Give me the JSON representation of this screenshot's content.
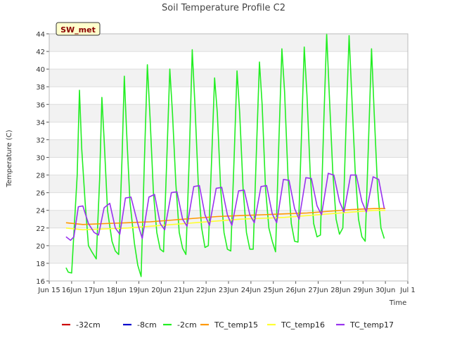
{
  "chart_data": {
    "type": "line",
    "title": "Soil Temperature Profile C2",
    "tag": "SW_met",
    "xlabel": "Time",
    "ylabel": "Temperature (C)",
    "ylim": [
      16,
      44
    ],
    "yticks": [
      16,
      18,
      20,
      22,
      24,
      26,
      28,
      30,
      32,
      34,
      36,
      38,
      40,
      42,
      44
    ],
    "xlim": [
      15,
      31
    ],
    "xticks": [
      {
        "day": 15,
        "label": "Jun 15"
      },
      {
        "day": 16,
        "label": "16Jun"
      },
      {
        "day": 17,
        "label": "17Jun"
      },
      {
        "day": 18,
        "label": "18Jun"
      },
      {
        "day": 19,
        "label": "19Jun"
      },
      {
        "day": 20,
        "label": "20Jun"
      },
      {
        "day": 21,
        "label": "21Jun"
      },
      {
        "day": 22,
        "label": "22Jun"
      },
      {
        "day": 23,
        "label": "23Jun"
      },
      {
        "day": 24,
        "label": "24Jun"
      },
      {
        "day": 25,
        "label": "25Jun"
      },
      {
        "day": 26,
        "label": "26Jun"
      },
      {
        "day": 27,
        "label": "27Jun"
      },
      {
        "day": 28,
        "label": "28Jun"
      },
      {
        "day": 29,
        "label": "29Jun"
      },
      {
        "day": 30,
        "label": "30Jun"
      },
      {
        "day": 31,
        "label": "Jul 1"
      }
    ],
    "grid": "horizontal bands",
    "legend_position": "bottom",
    "series": [
      {
        "name": "-32cm",
        "color": "#cc0000",
        "x": [],
        "y": []
      },
      {
        "name": "-8cm",
        "color": "#0000cc",
        "x": [],
        "y": []
      },
      {
        "name": "-2cm",
        "color": "#22ee22",
        "x": [
          15.75,
          15.85,
          16.0,
          16.25,
          16.35,
          16.45,
          16.6,
          16.75,
          16.9,
          17.1,
          17.25,
          17.35,
          17.45,
          17.6,
          17.8,
          17.95,
          18.1,
          18.25,
          18.35,
          18.45,
          18.6,
          18.8,
          18.95,
          19.1,
          19.25,
          19.38,
          19.5,
          19.65,
          19.8,
          19.95,
          20.1,
          20.25,
          20.38,
          20.5,
          20.65,
          20.8,
          20.95,
          21.1,
          21.25,
          21.38,
          21.5,
          21.65,
          21.8,
          21.95,
          22.1,
          22.25,
          22.38,
          22.5,
          22.65,
          22.8,
          22.95,
          23.1,
          23.25,
          23.38,
          23.5,
          23.65,
          23.8,
          23.95,
          24.1,
          24.25,
          24.38,
          24.5,
          24.65,
          24.8,
          24.95,
          25.1,
          25.25,
          25.38,
          25.5,
          25.65,
          25.8,
          25.95,
          26.1,
          26.25,
          26.38,
          26.5,
          26.65,
          26.8,
          26.95,
          27.1,
          27.25,
          27.38,
          27.5,
          27.65,
          27.8,
          27.95,
          28.1,
          28.25,
          28.38,
          28.5,
          28.65,
          28.8,
          28.95,
          29.1,
          29.25,
          29.38,
          29.5,
          29.65,
          29.8,
          29.95
        ],
        "y": [
          17.5,
          17.0,
          16.9,
          28.0,
          37.6,
          31.0,
          25.0,
          20.0,
          19.3,
          18.5,
          27.5,
          36.8,
          32.0,
          24.0,
          20.5,
          19.4,
          19.0,
          30.0,
          39.2,
          33.0,
          25.0,
          20.3,
          17.8,
          16.5,
          30.0,
          40.5,
          34.5,
          26.0,
          21.5,
          19.6,
          19.3,
          30.0,
          40.0,
          35.0,
          27.0,
          21.5,
          19.7,
          19.0,
          30.0,
          42.2,
          36.0,
          27.0,
          22.0,
          19.8,
          20.0,
          30.0,
          39.0,
          35.0,
          26.5,
          21.5,
          19.6,
          19.4,
          30.0,
          39.8,
          35.0,
          26.5,
          21.5,
          19.6,
          19.6,
          31.0,
          40.8,
          36.0,
          26.5,
          22.0,
          20.5,
          19.3,
          32.0,
          42.3,
          37.5,
          28.0,
          22.5,
          20.5,
          20.4,
          32.0,
          42.5,
          37.0,
          28.0,
          22.5,
          21.0,
          21.2,
          34.0,
          44.0,
          37.0,
          28.5,
          23.0,
          21.3,
          22.0,
          34.0,
          43.8,
          37.0,
          28.5,
          23.0,
          21.0,
          20.5,
          32.0,
          42.3,
          35.0,
          26.5,
          22.0,
          20.8
        ]
      },
      {
        "name": "TC_temp15",
        "color": "#ff9900",
        "x": [
          15.75,
          16.5,
          17.5,
          18.5,
          19.5,
          20.5,
          21.5,
          22.5,
          23.5,
          24.5,
          25.5,
          26.5,
          27.5,
          28.5,
          29.5,
          30.0
        ],
        "y": [
          22.6,
          22.4,
          22.5,
          22.6,
          22.7,
          22.9,
          23.1,
          23.3,
          23.4,
          23.5,
          23.6,
          23.7,
          23.9,
          24.1,
          24.2,
          24.2
        ]
      },
      {
        "name": "TC_temp16",
        "color": "#ffff33",
        "x": [
          15.75,
          16.5,
          17.5,
          18.5,
          19.5,
          20.5,
          21.5,
          22.5,
          23.5,
          24.5,
          25.5,
          26.5,
          27.5,
          28.5,
          29.5,
          30.0
        ],
        "y": [
          22.0,
          21.8,
          21.9,
          22.0,
          22.2,
          22.4,
          22.6,
          22.8,
          23.0,
          23.1,
          23.2,
          23.4,
          23.6,
          23.8,
          24.0,
          24.0
        ]
      },
      {
        "name": "TC_temp17",
        "color": "#9933ee",
        "x": [
          15.75,
          15.95,
          16.1,
          16.3,
          16.5,
          16.75,
          17.0,
          17.2,
          17.45,
          17.7,
          17.95,
          18.15,
          18.4,
          18.65,
          18.95,
          19.15,
          19.45,
          19.7,
          19.95,
          20.15,
          20.45,
          20.7,
          20.95,
          21.15,
          21.45,
          21.7,
          21.95,
          22.15,
          22.45,
          22.7,
          22.95,
          23.15,
          23.45,
          23.7,
          23.95,
          24.15,
          24.45,
          24.7,
          24.95,
          25.15,
          25.45,
          25.7,
          25.95,
          26.15,
          26.45,
          26.7,
          26.95,
          27.15,
          27.45,
          27.7,
          27.95,
          28.15,
          28.45,
          28.7,
          28.95,
          29.15,
          29.45,
          29.7,
          29.95
        ],
        "y": [
          21.0,
          20.6,
          21.0,
          24.4,
          24.5,
          22.5,
          21.5,
          21.2,
          24.3,
          24.8,
          22.0,
          21.3,
          25.4,
          25.5,
          22.5,
          20.8,
          25.5,
          25.8,
          22.5,
          21.8,
          26.0,
          26.1,
          23.0,
          22.2,
          26.7,
          26.8,
          23.5,
          22.3,
          26.5,
          26.6,
          23.5,
          22.3,
          26.2,
          26.3,
          23.5,
          22.6,
          26.7,
          26.8,
          23.6,
          22.6,
          27.5,
          27.4,
          24.2,
          23.0,
          27.7,
          27.6,
          24.5,
          23.5,
          28.2,
          28.0,
          25.0,
          23.8,
          28.0,
          28.0,
          25.0,
          23.8,
          27.8,
          27.5,
          24.2
        ]
      }
    ]
  }
}
